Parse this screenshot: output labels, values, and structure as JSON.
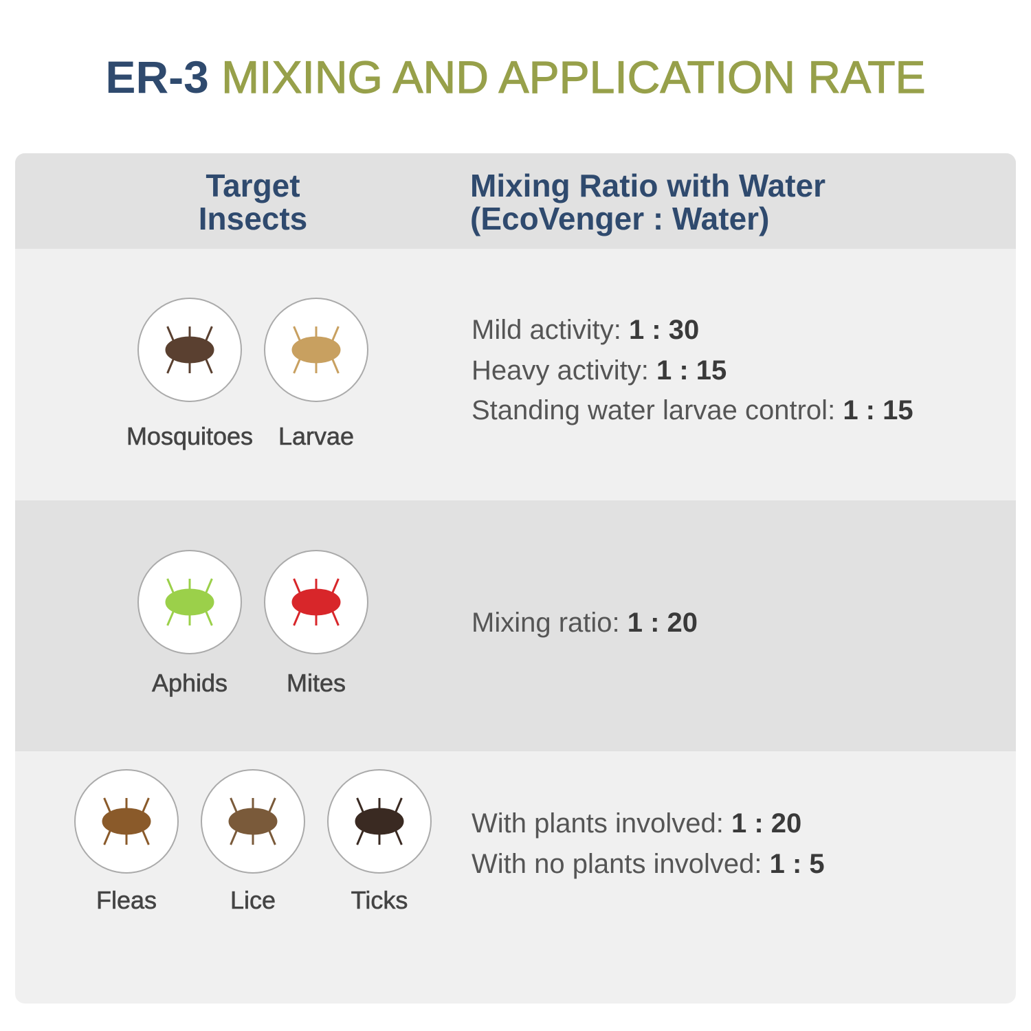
{
  "title": {
    "model": "ER-3",
    "text": "MIXING AND APPLICATION RATE"
  },
  "table": {
    "header": {
      "insects": [
        "Target",
        "Insects"
      ],
      "ratio": [
        "Mixing Ratio with Water",
        "(EcoVenger : Water)"
      ]
    },
    "rows": [
      {
        "insects": [
          "Mosquitoes",
          "Larvae"
        ],
        "ratios": [
          {
            "label": "Mild activity:",
            "value": "1 : 30"
          },
          {
            "label": "Heavy activity:",
            "value": "1 : 15"
          },
          {
            "label": "Standing water larvae control:",
            "value": "1 : 15"
          }
        ]
      },
      {
        "insects": [
          "Aphids",
          "Mites"
        ],
        "ratios": [
          {
            "label": "Mixing ratio:",
            "value": "1 : 20"
          }
        ]
      },
      {
        "insects": [
          "Fleas",
          "Lice",
          "Ticks"
        ],
        "ratios": [
          {
            "label": "With plants involved:",
            "value": "1 : 20"
          },
          {
            "label": "With no plants involved:",
            "value": "1 : 5"
          }
        ]
      }
    ]
  }
}
